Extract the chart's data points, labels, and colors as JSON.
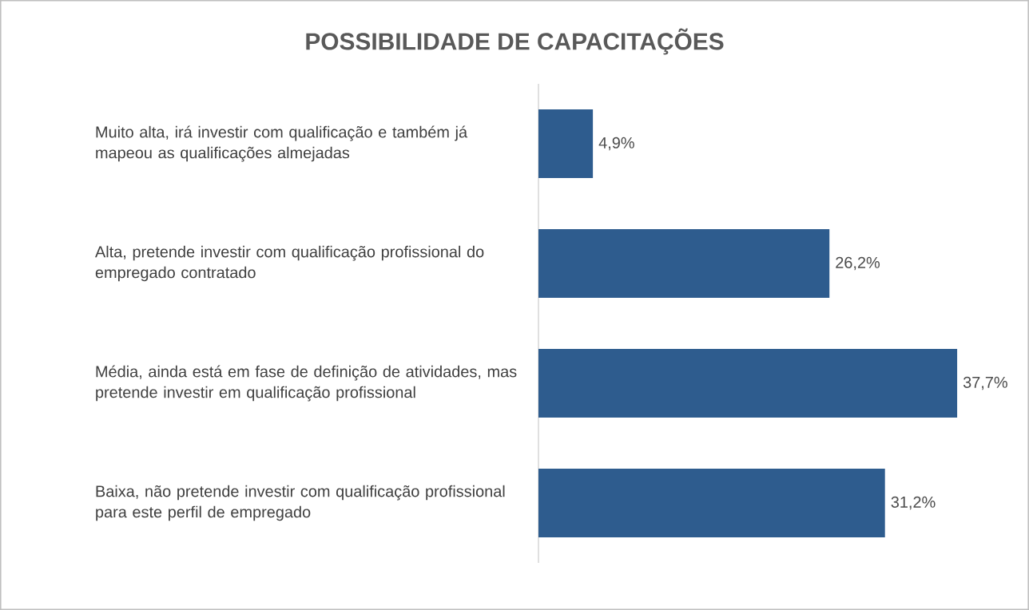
{
  "chart_data": {
    "type": "bar",
    "orientation": "horizontal",
    "title": "POSSIBILIDADE DE CAPACITAÇÕES",
    "categories": [
      "Muito alta, irá investir com qualificação e também já mapeou as qualificações almejadas",
      "Alta, pretende investir com qualificação profissional do empregado contratado",
      "Média, ainda está em fase de definição de atividades, mas pretende investir em qualificação profissional",
      "Baixa, não pretende investir com qualificação profissional para este perfil de empregado"
    ],
    "values": [
      4.9,
      26.2,
      37.7,
      31.2
    ],
    "value_labels": [
      "4,9%",
      "26,2%",
      "37,7%",
      "31,2%"
    ],
    "color": "#2e5c8e"
  }
}
